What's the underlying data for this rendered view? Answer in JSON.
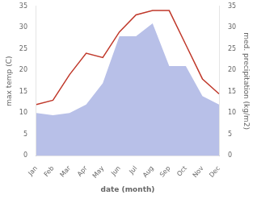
{
  "chart_data": {
    "type": "line",
    "categories": [
      "Jan",
      "Feb",
      "Mar",
      "Apr",
      "May",
      "Jun",
      "Jul",
      "Aug",
      "Sep",
      "Oct",
      "Nov",
      "Dec"
    ],
    "xlabel": "date (month)",
    "ylabel": "max temp (C)",
    "y2label": "med. precipitation (kg/m2)",
    "series": [
      {
        "type": "line",
        "color": "#c0392b",
        "values": [
          12,
          13,
          19,
          24,
          23,
          29,
          33,
          34,
          34,
          26,
          18,
          14.5
        ]
      },
      {
        "type": "area",
        "color": "#b8c0e8",
        "axis": "y2",
        "values": [
          10,
          9.5,
          10,
          12,
          17,
          28,
          28,
          31,
          21,
          21,
          14,
          12
        ]
      }
    ],
    "ylim": [
      0,
      35
    ],
    "yticks": [
      0,
      5,
      10,
      15,
      20,
      25,
      30,
      35
    ],
    "y2lim": [
      0,
      35
    ],
    "y2ticks": [
      0,
      5,
      10,
      15,
      20,
      25,
      30,
      35
    ],
    "grid": false
  }
}
